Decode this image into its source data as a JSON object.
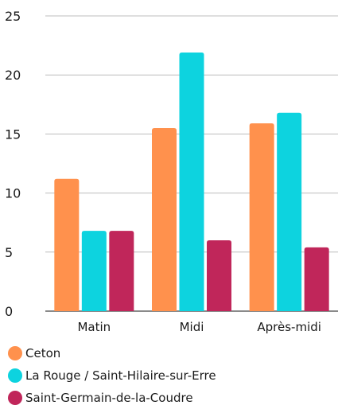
{
  "chart_data": {
    "type": "bar",
    "title": "",
    "xlabel": "",
    "ylabel": "",
    "ylim": [
      0,
      25
    ],
    "yticks": [
      0,
      5,
      10,
      15,
      20,
      25
    ],
    "grid": true,
    "legend_position": "bottom",
    "categories": [
      "Matin",
      "Midi",
      "Après-midi"
    ],
    "series": [
      {
        "name": "Ceton",
        "color": "#ff914d",
        "values": [
          11.2,
          15.5,
          15.9
        ]
      },
      {
        "name": "La Rouge / Saint-Hilaire-sur-Erre",
        "color": "#0dd3df",
        "values": [
          6.8,
          21.9,
          16.8
        ]
      },
      {
        "name": "Saint-Germain-de-la-Coudre",
        "color": "#c0265a",
        "values": [
          6.8,
          6.0,
          5.4
        ]
      }
    ]
  }
}
